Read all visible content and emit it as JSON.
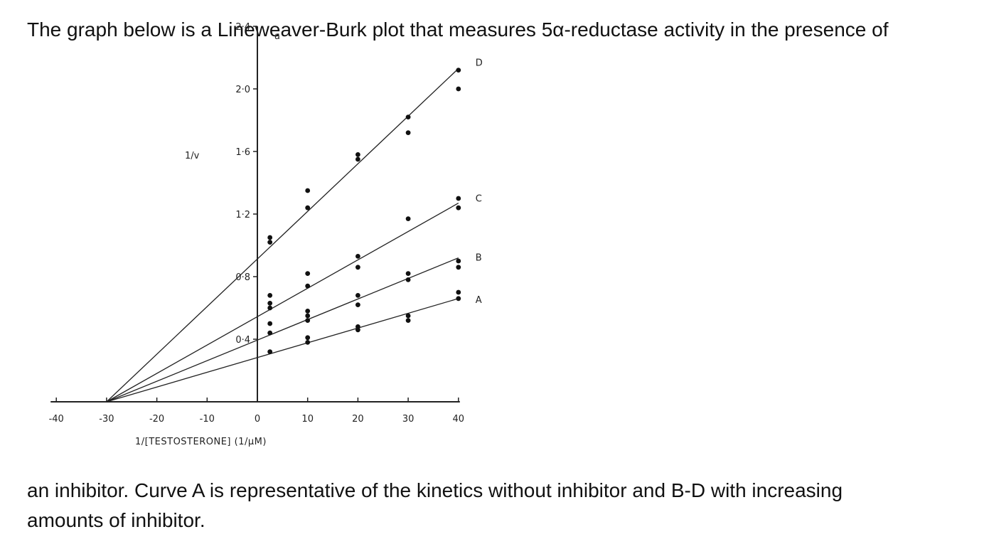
{
  "text": {
    "intro_before_symbol": "The graph below is a Lineweaver-Burk plot that measures 5",
    "greek_symbol": "α",
    "intro_after_symbol": "-reductase activity in the presence of",
    "continuation_line1": "an inhibitor.  Curve A is representative of the kinetics without inhibitor and B-D with increasing",
    "continuation_line2": "amounts of inhibitor."
  },
  "chart_data": {
    "type": "line",
    "panel_label": "a",
    "ylabel": "1/v",
    "xlabel": "1/[TESTOSTERONE] (1/μM)",
    "xlim": [
      -40,
      40
    ],
    "ylim": [
      0,
      2.4
    ],
    "x_ticks": [
      -40,
      -30,
      -20,
      -10,
      0,
      10,
      20,
      30,
      40
    ],
    "x_tick_labels": [
      "-40",
      "-30",
      "-20",
      "-10",
      "0",
      "10",
      "20",
      "30",
      "40"
    ],
    "y_ticks": [
      0.4,
      0.8,
      1.2,
      1.6,
      2.0,
      2.4
    ],
    "y_tick_labels": [
      "0·4",
      "0·8",
      "1·2",
      "1·6",
      "2·0",
      "2·4"
    ],
    "x_intercept": -30,
    "series": [
      {
        "name": "A",
        "line": [
          [
            -30,
            0
          ],
          [
            40,
            0.66
          ]
        ],
        "points": [
          [
            2.5,
            0.32
          ],
          [
            10,
            0.38
          ],
          [
            10,
            0.41
          ],
          [
            20,
            0.46
          ],
          [
            20,
            0.48
          ],
          [
            30,
            0.55
          ],
          [
            30,
            0.52
          ],
          [
            40,
            0.66
          ],
          [
            40,
            0.7
          ]
        ]
      },
      {
        "name": "B",
        "line": [
          [
            -30,
            0
          ],
          [
            40,
            0.92
          ]
        ],
        "points": [
          [
            2.5,
            0.44
          ],
          [
            2.5,
            0.5
          ],
          [
            10,
            0.52
          ],
          [
            10,
            0.55
          ],
          [
            10,
            0.58
          ],
          [
            20,
            0.62
          ],
          [
            20,
            0.68
          ],
          [
            30,
            0.78
          ],
          [
            30,
            0.82
          ],
          [
            40,
            0.86
          ],
          [
            40,
            0.9
          ]
        ]
      },
      {
        "name": "C",
        "line": [
          [
            -30,
            0
          ],
          [
            40,
            1.27
          ]
        ],
        "points": [
          [
            2.5,
            0.6
          ],
          [
            2.5,
            0.63
          ],
          [
            2.5,
            0.68
          ],
          [
            10,
            0.74
          ],
          [
            10,
            0.82
          ],
          [
            20,
            0.86
          ],
          [
            20,
            0.93
          ],
          [
            30,
            1.17
          ],
          [
            40,
            1.24
          ],
          [
            40,
            1.3
          ]
        ]
      },
      {
        "name": "D",
        "line": [
          [
            -30,
            0
          ],
          [
            40,
            2.13
          ]
        ],
        "points": [
          [
            2.5,
            1.02
          ],
          [
            2.5,
            1.05
          ],
          [
            10,
            1.24
          ],
          [
            10,
            1.35
          ],
          [
            20,
            1.55
          ],
          [
            20,
            1.58
          ],
          [
            30,
            1.72
          ],
          [
            30,
            1.82
          ],
          [
            40,
            2.0
          ],
          [
            40,
            2.12
          ]
        ]
      }
    ]
  }
}
